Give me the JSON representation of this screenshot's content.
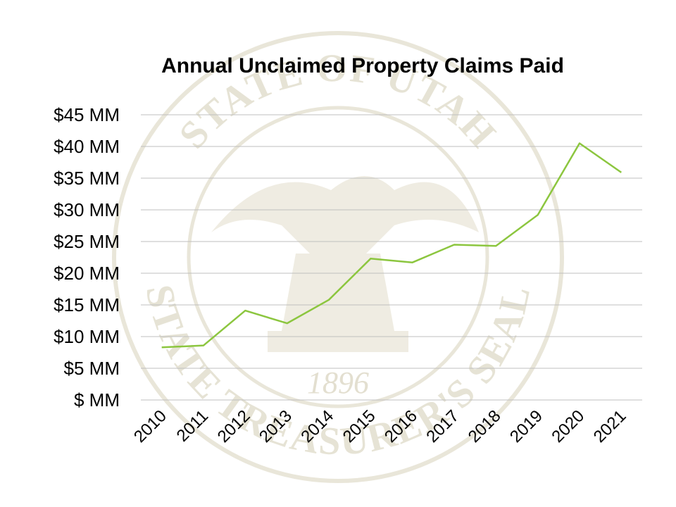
{
  "chart_data": {
    "type": "line",
    "title": "Annual Unclaimed Property Claims Paid",
    "xlabel": "",
    "ylabel": "",
    "categories": [
      "2010",
      "2011",
      "2012",
      "2013",
      "2014",
      "2015",
      "2016",
      "2017",
      "2018",
      "2019",
      "2020",
      "2021"
    ],
    "values": [
      8.3,
      8.6,
      14.1,
      12.1,
      15.8,
      22.3,
      21.7,
      24.5,
      24.3,
      29.2,
      40.5,
      35.9
    ],
    "ylim": [
      0,
      45
    ],
    "yticks": [
      0,
      5,
      10,
      15,
      20,
      25,
      30,
      35,
      40,
      45
    ],
    "ytick_labels": [
      "$ MM",
      "$5 MM",
      "$10 MM",
      "$15 MM",
      "$20 MM",
      "$25 MM",
      "$30 MM",
      "$35 MM",
      "$40 MM",
      "$45 MM"
    ],
    "grid": true,
    "legend": "none",
    "line_color": "#8cc63f"
  },
  "watermark": {
    "top_text": "STATE OF UTAH",
    "bottom_text": "STATE TREASURER'S SEAL",
    "year": "1896"
  }
}
